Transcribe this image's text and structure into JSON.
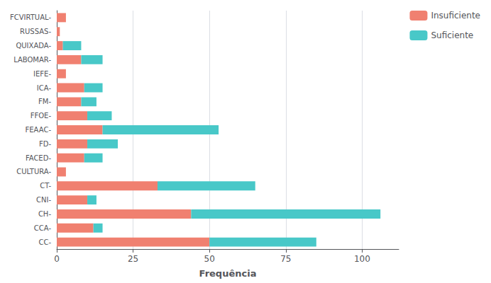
{
  "chart_data": {
    "type": "bar",
    "orientation": "horizontal",
    "stacked": true,
    "categories": [
      "CC-",
      "CCA-",
      "CH-",
      "CNI-",
      "CT-",
      "CULTURA-",
      "FACED-",
      "FD-",
      "FEAAC-",
      "FFOE-",
      "FM-",
      "ICA-",
      "IEFE-",
      "LABOMAR-",
      "QUIXADA-",
      "RUSSAS-",
      "FCVIRTUAL-"
    ],
    "series": [
      {
        "name": "Insuficiente",
        "color": "#F08070",
        "values": [
          50,
          12,
          44,
          10,
          33,
          3,
          9,
          10,
          15,
          10,
          8,
          9,
          3,
          8,
          2,
          1,
          3
        ]
      },
      {
        "name": "Suficiente",
        "color": "#48C8C8",
        "values": [
          35,
          3,
          62,
          3,
          32,
          0,
          6,
          10,
          38,
          8,
          5,
          6,
          0,
          7,
          6,
          0,
          0
        ]
      }
    ],
    "xlabel": "Frequência",
    "xlim": [
      0,
      112
    ],
    "xticks": [
      0,
      25,
      50,
      75,
      100
    ],
    "grid": true,
    "legend": "right"
  }
}
